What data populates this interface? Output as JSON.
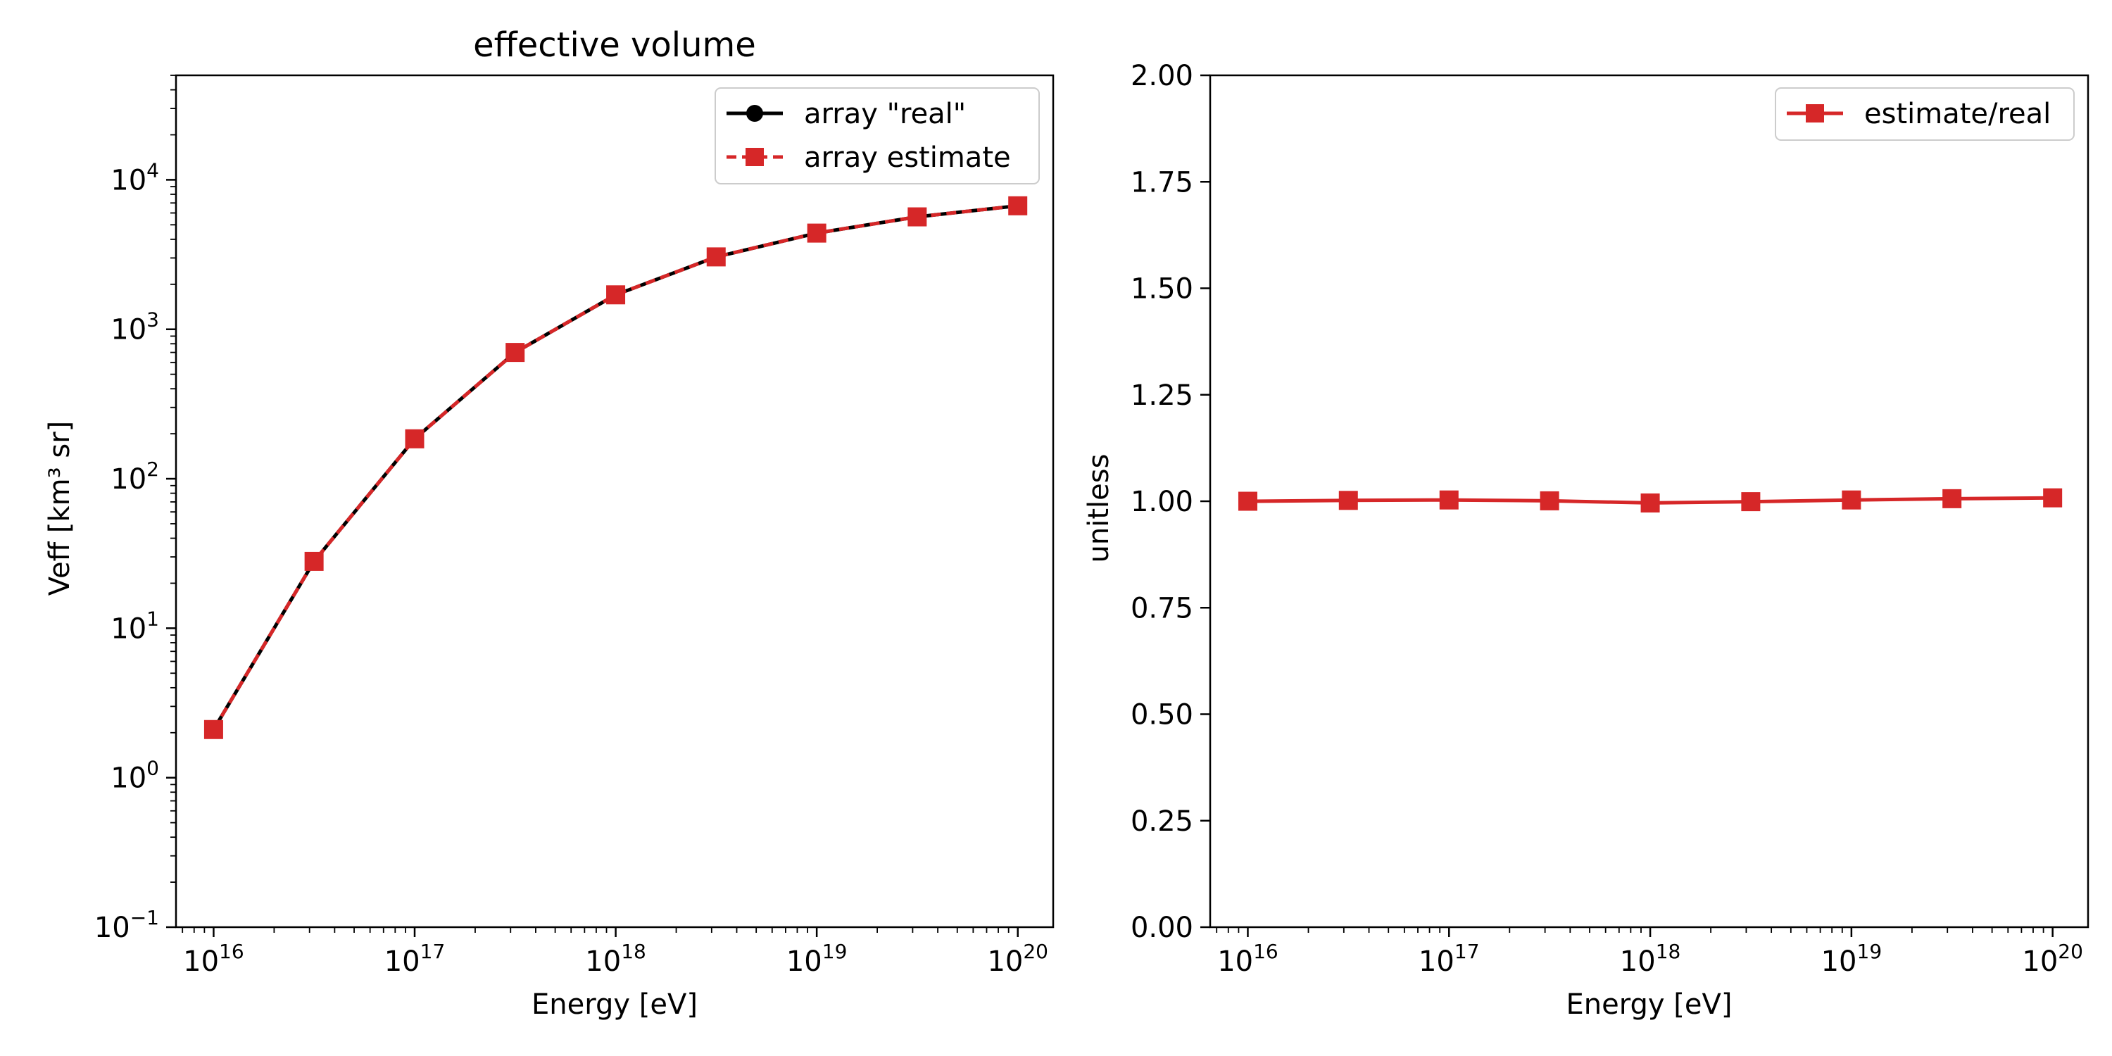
{
  "chart_data": [
    {
      "type": "line",
      "title": "effective volume",
      "xlabel": "Energy [eV]",
      "ylabel": "Veff [km³ sr]",
      "xscale": "log",
      "yscale": "log",
      "xlim": [
        6500000000000000.0,
        1.5e+20
      ],
      "ylim": [
        0.1,
        50000
      ],
      "xticks": [
        {
          "base": "10",
          "exp": "16",
          "value": 1e+16
        },
        {
          "base": "10",
          "exp": "17",
          "value": 1e+17
        },
        {
          "base": "10",
          "exp": "18",
          "value": 1e+18
        },
        {
          "base": "10",
          "exp": "19",
          "value": 1e+19
        },
        {
          "base": "10",
          "exp": "20",
          "value": 1e+20
        }
      ],
      "yticks": [
        {
          "base": "10",
          "exp": "−1",
          "value": 0.1
        },
        {
          "base": "10",
          "exp": "0",
          "value": 1
        },
        {
          "base": "10",
          "exp": "1",
          "value": 10
        },
        {
          "base": "10",
          "exp": "2",
          "value": 100
        },
        {
          "base": "10",
          "exp": "3",
          "value": 1000
        },
        {
          "base": "10",
          "exp": "4",
          "value": 10000
        }
      ],
      "x": [
        1e+16,
        3.16e+16,
        1e+17,
        3.16e+17,
        1e+18,
        3.16e+18,
        1e+19,
        3.16e+19,
        1e+20
      ],
      "series": [
        {
          "name": "array \"real\"",
          "color": "#000000",
          "marker": "circle",
          "linestyle": "solid",
          "values": [
            2.1,
            28,
            185,
            700,
            1700,
            3050,
            4400,
            5650,
            6700
          ]
        },
        {
          "name": "array estimate",
          "color": "#d62728",
          "marker": "square",
          "linestyle": "dashed",
          "values": [
            2.1,
            28,
            185,
            700,
            1700,
            3050,
            4400,
            5650,
            6700
          ]
        }
      ],
      "legend": "top-right",
      "grid": false
    },
    {
      "type": "line",
      "title": "",
      "xlabel": "Energy [eV]",
      "ylabel": "unitless",
      "xscale": "log",
      "yscale": "linear",
      "xlim": [
        6500000000000000.0,
        1.5e+20
      ],
      "ylim": [
        0,
        2
      ],
      "xticks": [
        {
          "base": "10",
          "exp": "16",
          "value": 1e+16
        },
        {
          "base": "10",
          "exp": "17",
          "value": 1e+17
        },
        {
          "base": "10",
          "exp": "18",
          "value": 1e+18
        },
        {
          "base": "10",
          "exp": "19",
          "value": 1e+19
        },
        {
          "base": "10",
          "exp": "20",
          "value": 1e+20
        }
      ],
      "yticks": [
        "0.00",
        "0.25",
        "0.50",
        "0.75",
        "1.00",
        "1.25",
        "1.50",
        "1.75",
        "2.00"
      ],
      "x": [
        1e+16,
        3.16e+16,
        1e+17,
        3.16e+17,
        1e+18,
        3.16e+18,
        1e+19,
        3.16e+19,
        1e+20
      ],
      "series": [
        {
          "name": "estimate/real",
          "color": "#d62728",
          "marker": "square",
          "linestyle": "solid",
          "values": [
            1.0,
            1.002,
            1.003,
            1.001,
            0.996,
            0.999,
            1.003,
            1.006,
            1.008
          ]
        }
      ],
      "legend": "top-right",
      "grid": false
    }
  ]
}
